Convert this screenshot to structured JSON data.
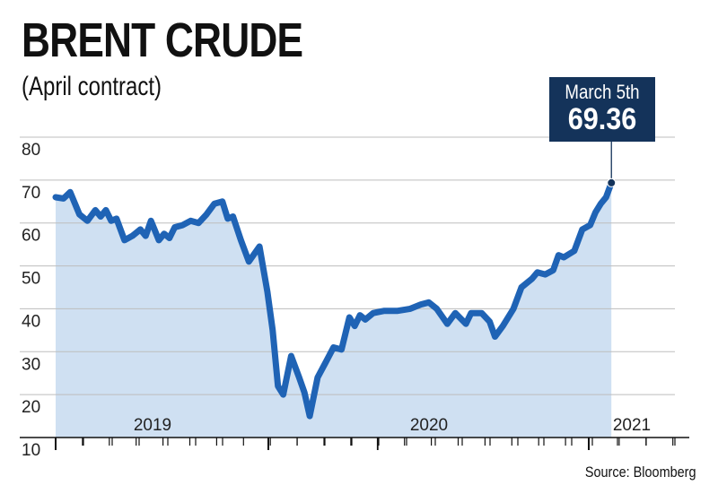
{
  "chart_data": {
    "type": "area",
    "title": "BRENT CRUDE",
    "subtitle": "(April contract)",
    "source": "Source: Bloomberg",
    "ylim": [
      10,
      80
    ],
    "yticks": [
      10,
      20,
      30,
      40,
      50,
      60,
      70,
      80
    ],
    "xticks": [
      {
        "label": "2019",
        "x": 2019.3
      },
      {
        "label": "2020",
        "x": 2020.3
      },
      {
        "label": "2021",
        "x": 2021.15
      }
    ],
    "year_markers": [
      2019.0,
      2020.0,
      2021.0
    ],
    "xlim": [
      2018.98,
      2021.32
    ],
    "grid": true,
    "series": [
      {
        "values": [
          [
            2018.98,
            66
          ],
          [
            2019.01,
            65.7
          ],
          [
            2019.035,
            67.2
          ],
          [
            2019.07,
            62
          ],
          [
            2019.1,
            60.5
          ],
          [
            2019.13,
            63
          ],
          [
            2019.15,
            61.5
          ],
          [
            2019.17,
            63
          ],
          [
            2019.19,
            60.5
          ],
          [
            2019.21,
            61
          ],
          [
            2019.24,
            56
          ],
          [
            2019.27,
            57
          ],
          [
            2019.3,
            58.5
          ],
          [
            2019.32,
            57
          ],
          [
            2019.34,
            60.5
          ],
          [
            2019.37,
            56
          ],
          [
            2019.39,
            57.5
          ],
          [
            2019.41,
            56.5
          ],
          [
            2019.43,
            59
          ],
          [
            2019.46,
            59.5
          ],
          [
            2019.49,
            60.5
          ],
          [
            2019.52,
            60
          ],
          [
            2019.55,
            62
          ],
          [
            2019.58,
            64.5
          ],
          [
            2019.61,
            65
          ],
          [
            2019.63,
            61
          ],
          [
            2019.65,
            61.5
          ],
          [
            2019.68,
            56
          ],
          [
            2019.71,
            51
          ],
          [
            2019.75,
            54.5
          ],
          [
            2019.78,
            44
          ],
          [
            2019.8,
            35
          ],
          [
            2019.82,
            22
          ],
          [
            2019.84,
            20
          ],
          [
            2019.87,
            29
          ],
          [
            2019.9,
            24
          ],
          [
            2019.92,
            20.5
          ],
          [
            2019.94,
            15
          ],
          [
            2019.97,
            24
          ],
          [
            2020.0,
            27.5
          ],
          [
            2020.03,
            31
          ],
          [
            2020.06,
            30.5
          ],
          [
            2020.09,
            38
          ],
          [
            2020.11,
            36
          ],
          [
            2020.13,
            38.5
          ],
          [
            2020.15,
            37.5
          ],
          [
            2020.18,
            39
          ],
          [
            2020.22,
            39.5
          ],
          [
            2020.27,
            39.5
          ],
          [
            2020.32,
            40
          ],
          [
            2020.36,
            41
          ],
          [
            2020.39,
            41.5
          ],
          [
            2020.42,
            40
          ],
          [
            2020.46,
            36.5
          ],
          [
            2020.49,
            39
          ],
          [
            2020.53,
            36.5
          ],
          [
            2020.55,
            39
          ],
          [
            2020.59,
            39
          ],
          [
            2020.62,
            37
          ],
          [
            2020.64,
            33.5
          ],
          [
            2020.67,
            36
          ],
          [
            2020.71,
            40
          ],
          [
            2020.74,
            45
          ],
          [
            2020.78,
            47
          ],
          [
            2020.8,
            48.5
          ],
          [
            2020.83,
            48
          ],
          [
            2020.86,
            49
          ],
          [
            2020.88,
            52.5
          ],
          [
            2020.9,
            52
          ],
          [
            2020.94,
            53.5
          ],
          [
            2020.97,
            58.5
          ],
          [
            2021.0,
            59.5
          ],
          [
            2021.02,
            62.5
          ],
          [
            2021.04,
            64.5
          ],
          [
            2021.06,
            66
          ],
          [
            2021.08,
            69.36
          ]
        ]
      }
    ],
    "annotation": {
      "date": "March 5th",
      "value": "69.36"
    },
    "colors": {
      "line": "#1f63b5",
      "area": "#cfe0f2",
      "grid": "#bdbdbd",
      "callout": "#14335a"
    }
  }
}
